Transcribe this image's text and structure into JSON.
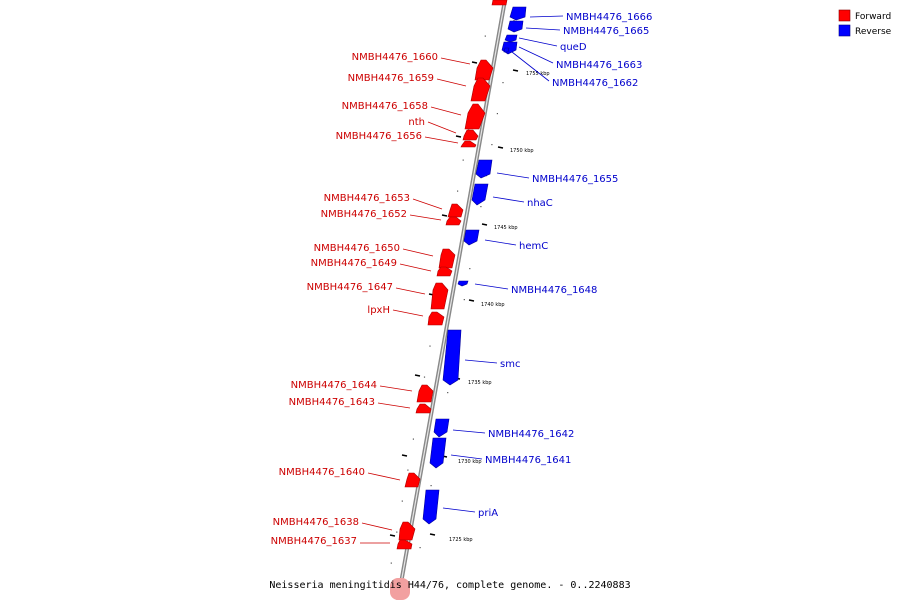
{
  "caption": "Neisseria meningitidis H44/76, complete genome. - 0..2240883",
  "legend": {
    "forward": {
      "label": "Forward",
      "color": "#ff0000"
    },
    "reverse": {
      "label": "Reverse",
      "color": "#0000ff"
    }
  },
  "ticks": [
    "1755 kbp",
    "1750 kbp",
    "1745 kbp",
    "1740 kbp",
    "1735 kbp",
    "1730 kbp",
    "1725 kbp"
  ],
  "genes_forward": [
    {
      "name": "NMBH4476_1660"
    },
    {
      "name": "NMBH4476_1659"
    },
    {
      "name": "NMBH4476_1658"
    },
    {
      "name": "nth"
    },
    {
      "name": "NMBH4476_1656"
    },
    {
      "name": "NMBH4476_1653"
    },
    {
      "name": "NMBH4476_1652"
    },
    {
      "name": "NMBH4476_1650"
    },
    {
      "name": "NMBH4476_1649"
    },
    {
      "name": "NMBH4476_1647"
    },
    {
      "name": "lpxH"
    },
    {
      "name": "NMBH4476_1644"
    },
    {
      "name": "NMBH4476_1643"
    },
    {
      "name": "NMBH4476_1640"
    },
    {
      "name": "NMBH4476_1638"
    },
    {
      "name": "NMBH4476_1637"
    }
  ],
  "genes_reverse": [
    {
      "name": "NMBH4476_1666"
    },
    {
      "name": "NMBH4476_1665"
    },
    {
      "name": "queD"
    },
    {
      "name": "NMBH4476_1663"
    },
    {
      "name": "NMBH4476_1662"
    },
    {
      "name": "NMBH4476_1655"
    },
    {
      "name": "nhaC"
    },
    {
      "name": "hemC"
    },
    {
      "name": "NMBH4476_1648"
    },
    {
      "name": "smc"
    },
    {
      "name": "NMBH4476_1642"
    },
    {
      "name": "NMBH4476_1641"
    },
    {
      "name": "priA"
    }
  ]
}
